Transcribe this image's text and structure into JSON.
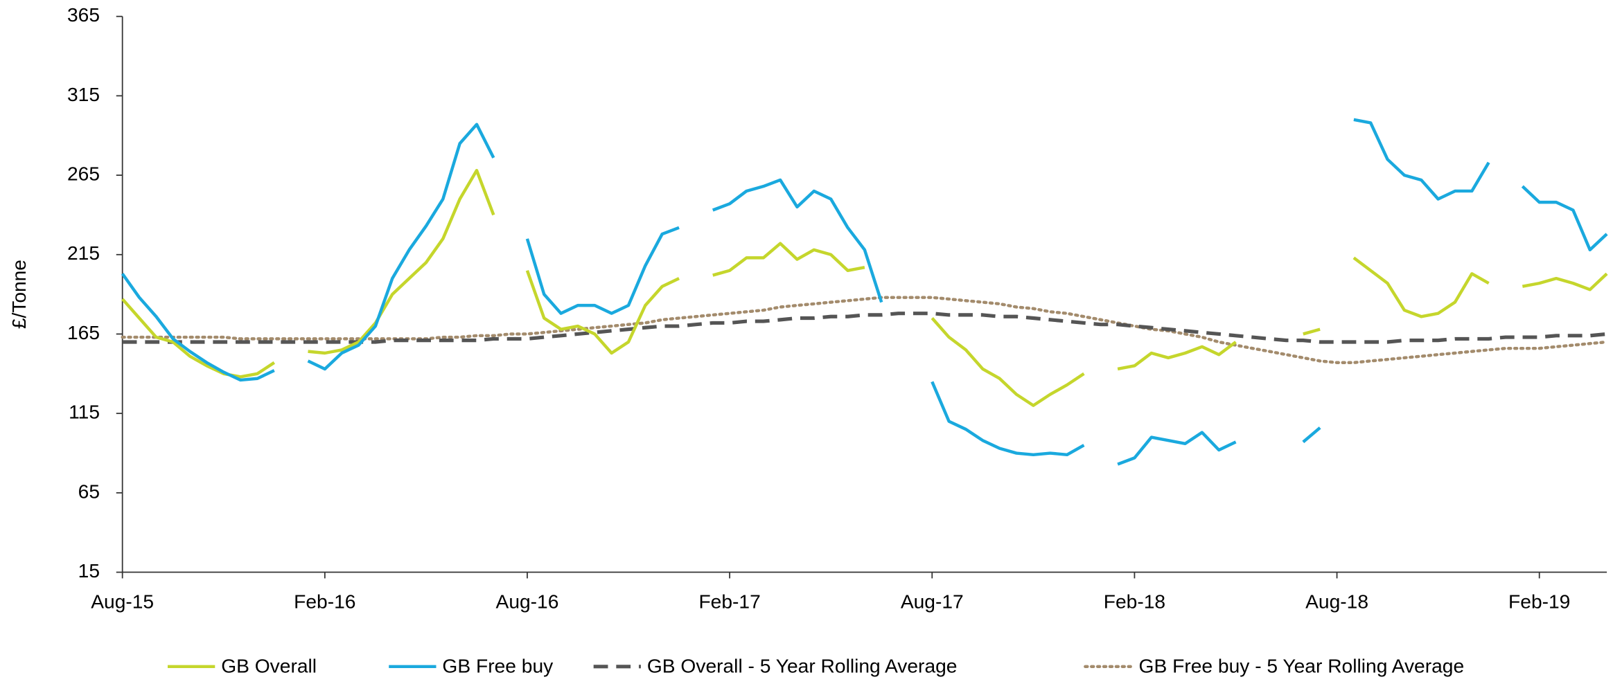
{
  "chart_data": {
    "type": "line",
    "y_label": "£/Tonne",
    "categories": [
      "Aug-15",
      null,
      null,
      null,
      null,
      null,
      null,
      null,
      null,
      null,
      null,
      null,
      "Feb-16",
      null,
      null,
      null,
      null,
      null,
      null,
      null,
      null,
      null,
      null,
      null,
      "Aug-16",
      null,
      null,
      null,
      null,
      null,
      null,
      null,
      null,
      null,
      null,
      null,
      "Feb-17",
      null,
      null,
      null,
      null,
      null,
      null,
      null,
      null,
      null,
      null,
      null,
      "Aug-17",
      null,
      null,
      null,
      null,
      null,
      null,
      null,
      null,
      null,
      null,
      null,
      "Feb-18",
      null,
      null,
      null,
      null,
      null,
      null,
      null,
      null,
      null,
      null,
      null,
      "Aug-18",
      null,
      null,
      null,
      null,
      null,
      null,
      null,
      null,
      null,
      null,
      null,
      "Feb-19",
      null,
      null,
      null,
      null
    ],
    "series": [
      {
        "name": "GB Overall",
        "color": "#c5d62c",
        "style": "solid",
        "values": [
          187,
          175,
          163,
          160,
          151,
          145,
          140,
          138,
          140,
          147,
          null,
          154,
          153,
          155,
          160,
          172,
          190,
          200,
          210,
          225,
          250,
          268,
          240,
          null,
          205,
          175,
          168,
          170,
          165,
          153,
          160,
          183,
          195,
          200,
          null,
          202,
          205,
          213,
          213,
          222,
          212,
          218,
          215,
          205,
          207,
          null,
          null,
          null,
          175,
          163,
          155,
          143,
          137,
          127,
          120,
          127,
          133,
          140,
          null,
          143,
          145,
          153,
          150,
          153,
          157,
          152,
          160,
          null,
          null,
          null,
          165,
          168,
          null,
          213,
          205,
          197,
          180,
          176,
          178,
          185,
          203,
          197,
          null,
          195,
          197,
          200,
          197,
          193,
          203
        ]
      },
      {
        "name": "GB Free buy",
        "color": "#1aa9de",
        "style": "solid",
        "values": [
          203,
          188,
          176,
          162,
          154,
          147,
          141,
          136,
          137,
          142,
          null,
          148,
          143,
          153,
          158,
          170,
          200,
          218,
          233,
          250,
          285,
          297,
          276,
          null,
          225,
          190,
          178,
          183,
          183,
          178,
          183,
          208,
          228,
          232,
          null,
          243,
          247,
          255,
          258,
          262,
          245,
          255,
          250,
          232,
          218,
          185,
          null,
          null,
          135,
          110,
          105,
          98,
          93,
          90,
          89,
          90,
          89,
          95,
          null,
          83,
          87,
          100,
          98,
          96,
          103,
          92,
          97,
          null,
          null,
          null,
          97,
          106,
          null,
          300,
          298,
          275,
          265,
          262,
          250,
          255,
          255,
          273,
          null,
          258,
          248,
          248,
          243,
          218,
          228
        ]
      },
      {
        "name": "GB Overall - 5 Year Rolling Average",
        "color": "#555555",
        "style": "dashed",
        "values": [
          160,
          160,
          160,
          160,
          160,
          160,
          160,
          160,
          160,
          160,
          160,
          160,
          160,
          160,
          160,
          160,
          161,
          161,
          161,
          161,
          161,
          161,
          162,
          162,
          162,
          163,
          164,
          165,
          166,
          167,
          168,
          169,
          170,
          170,
          171,
          172,
          172,
          173,
          173,
          174,
          175,
          175,
          176,
          176,
          177,
          177,
          178,
          178,
          178,
          177,
          177,
          177,
          176,
          176,
          175,
          174,
          173,
          172,
          171,
          171,
          170,
          169,
          168,
          167,
          166,
          165,
          164,
          163,
          162,
          161,
          161,
          160,
          160,
          160,
          160,
          160,
          161,
          161,
          161,
          162,
          162,
          162,
          163,
          163,
          163,
          164,
          164,
          164,
          165
        ]
      },
      {
        "name": "GB Free buy - 5 Year Rolling Average",
        "color": "#a38b6c",
        "style": "dotted",
        "values": [
          163,
          163,
          163,
          163,
          163,
          163,
          163,
          162,
          162,
          162,
          162,
          162,
          162,
          162,
          162,
          162,
          162,
          162,
          162,
          163,
          163,
          164,
          164,
          165,
          165,
          166,
          167,
          168,
          169,
          170,
          171,
          172,
          174,
          175,
          176,
          177,
          178,
          179,
          180,
          182,
          183,
          184,
          185,
          186,
          187,
          188,
          188,
          188,
          188,
          187,
          186,
          185,
          184,
          182,
          181,
          179,
          178,
          176,
          174,
          172,
          170,
          168,
          167,
          165,
          163,
          160,
          158,
          156,
          154,
          152,
          150,
          148,
          147,
          147,
          148,
          149,
          150,
          151,
          152,
          153,
          154,
          155,
          156,
          156,
          156,
          157,
          158,
          159,
          160
        ]
      }
    ],
    "ylim": [
      15,
      365
    ],
    "yticks": [
      15,
      65,
      115,
      165,
      215,
      265,
      315,
      365
    ],
    "legend": "bottom"
  }
}
